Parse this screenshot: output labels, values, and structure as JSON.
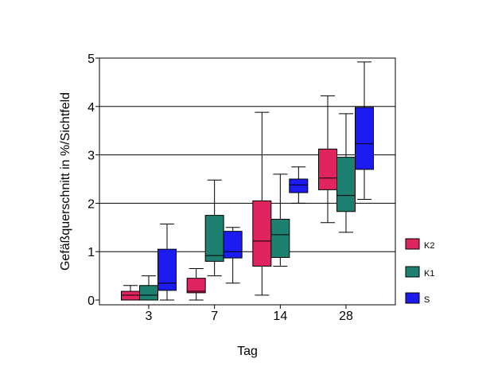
{
  "chart_data": {
    "type": "box",
    "xlabel": "Tag",
    "ylabel": "Gefäßquerschnitt in %/Sichtfeld",
    "categories": [
      "3",
      "7",
      "14",
      "28"
    ],
    "yticks": [
      "0",
      "1",
      "2",
      "3",
      "4",
      "5"
    ],
    "ylim": [
      0,
      5
    ],
    "grid": true,
    "legend_position": "right",
    "series": [
      {
        "name": "K2",
        "color": "#e0245e",
        "boxes": [
          {
            "min": 0.0,
            "q1": 0.0,
            "median": 0.1,
            "q3": 0.18,
            "max": 0.3
          },
          {
            "min": 0.0,
            "q1": 0.15,
            "median": 0.18,
            "q3": 0.45,
            "max": 0.65
          },
          {
            "min": 0.1,
            "q1": 0.7,
            "median": 1.22,
            "q3": 2.05,
            "max": 3.88
          },
          {
            "min": 1.6,
            "q1": 2.28,
            "median": 2.52,
            "q3": 3.12,
            "max": 4.22
          }
        ]
      },
      {
        "name": "K1",
        "color": "#1e8070",
        "boxes": [
          {
            "min": 0.0,
            "q1": 0.0,
            "median": 0.1,
            "q3": 0.3,
            "max": 0.5
          },
          {
            "min": 0.5,
            "q1": 0.8,
            "median": 0.92,
            "q3": 1.75,
            "max": 2.48
          },
          {
            "min": 0.7,
            "q1": 0.88,
            "median": 1.35,
            "q3": 1.67,
            "max": 2.6
          },
          {
            "min": 1.4,
            "q1": 1.83,
            "median": 2.16,
            "q3": 2.95,
            "max": 3.85
          }
        ]
      },
      {
        "name": "S",
        "color": "#1c1cf0",
        "boxes": [
          {
            "min": 0.0,
            "q1": 0.2,
            "median": 0.35,
            "q3": 1.05,
            "max": 1.57
          },
          {
            "min": 0.35,
            "q1": 0.87,
            "median": 1.0,
            "q3": 1.42,
            "max": 1.5
          },
          {
            "min": 2.0,
            "q1": 2.22,
            "median": 2.38,
            "q3": 2.5,
            "max": 2.75
          },
          {
            "min": 2.08,
            "q1": 2.7,
            "median": 3.23,
            "q3": 3.98,
            "max": 4.92
          }
        ]
      }
    ]
  }
}
